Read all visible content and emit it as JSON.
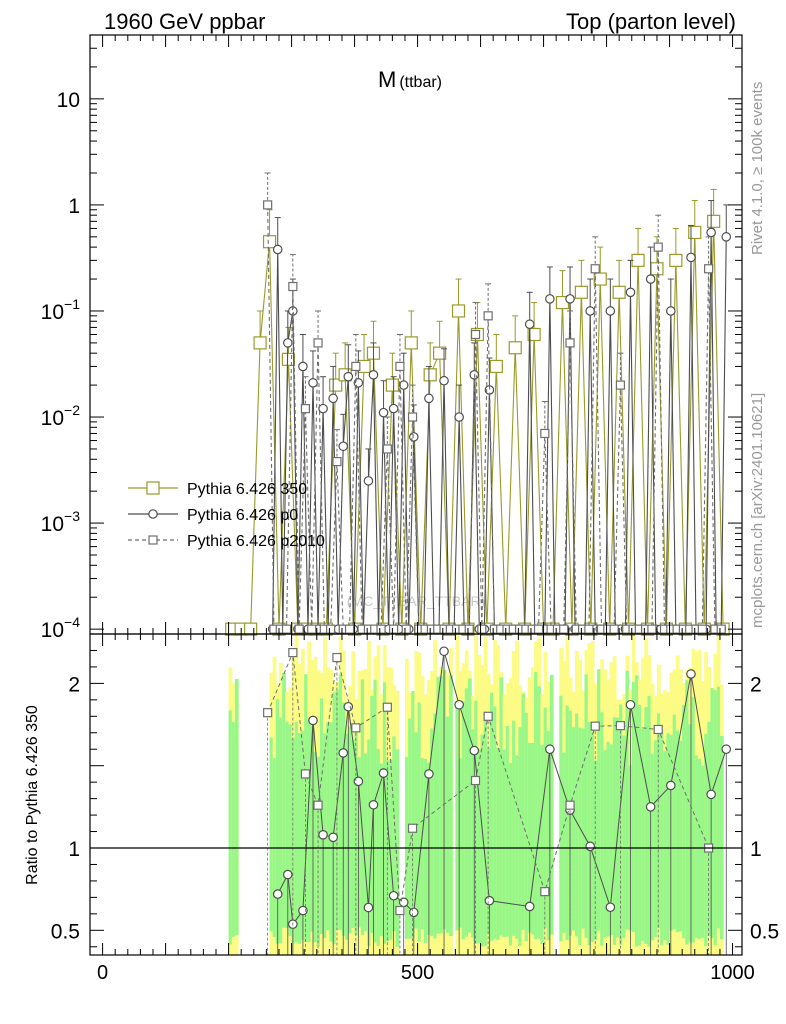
{
  "header": {
    "left": "1960 GeV ppbar",
    "right": "Top (parton level)"
  },
  "side_labels": {
    "rivet": "Rivet 4.1.0, ≥ 100k events",
    "mcplots": "mcplots.cern.ch [arXiv:2401.10621]"
  },
  "watermark": "(MC_TTBAR_TTBAR)",
  "chart_data": {
    "type": "line",
    "title": "M",
    "title_sub": "(ttbar)",
    "x_range": [
      -20,
      1015
    ],
    "y_scale": "log",
    "y_range": [
      9e-05,
      40
    ],
    "x_ticks": [
      {
        "value": 0,
        "label": "0"
      },
      {
        "value": 500,
        "label": "500"
      },
      {
        "value": 1000,
        "label": "1000"
      }
    ],
    "y_ticks": [
      {
        "value": 0.0001,
        "base": "10",
        "exp": "−4"
      },
      {
        "value": 0.001,
        "base": "10",
        "exp": "−3"
      },
      {
        "value": 0.01,
        "base": "10",
        "exp": "−2"
      },
      {
        "value": 0.1,
        "base": "10",
        "exp": "−1"
      },
      {
        "value": 1,
        "base": "1",
        "exp": ""
      },
      {
        "value": 10,
        "base": "10",
        "exp": ""
      }
    ],
    "ratio": {
      "ylabel": "Ratio to Pythia 6.426 350",
      "y_range": [
        0.35,
        2.3
      ],
      "ticks": [
        {
          "value": 0.5,
          "label": "0.5"
        },
        {
          "value": 1,
          "label": "1"
        },
        {
          "value": 2,
          "label": "2"
        }
      ],
      "band_x_range": [
        200,
        985
      ]
    },
    "series": [
      {
        "name": "Pythia 6.426 350",
        "color": "#9a9a28",
        "marker": "square-open",
        "line": "solid",
        "x": [
          205,
          220,
          235,
          250,
          265,
          280,
          295,
          310,
          325,
          340,
          355,
          370,
          385,
          400,
          415,
          430,
          445,
          460,
          475,
          490,
          505,
          520,
          535,
          550,
          565,
          580,
          595,
          610,
          625,
          640,
          655,
          670,
          685,
          700,
          715,
          730,
          745,
          760,
          775,
          790,
          805,
          820,
          835,
          850,
          865,
          880,
          895,
          910,
          925,
          940,
          955,
          970,
          985
        ],
        "values": [
          0.0001,
          0.0001,
          0.0001,
          0.05,
          0.45,
          0.0001,
          0.035,
          0.0001,
          0.0001,
          0.0001,
          0.0001,
          0.02,
          0.025,
          0.0001,
          0.03,
          0.04,
          0.0001,
          0.02,
          0.0001,
          0.05,
          0.0001,
          0.025,
          0.04,
          0.0001,
          0.1,
          0.0001,
          0.06,
          0.0001,
          0.03,
          0.0001,
          0.045,
          0.0001,
          0.06,
          0.0001,
          0.0001,
          0.12,
          0.0001,
          0.15,
          0.0001,
          0.2,
          0.0001,
          0.15,
          0.0001,
          0.3,
          0.0001,
          0.25,
          0.0001,
          0.3,
          0.0001,
          0.55,
          0.0001,
          0.7,
          0.0001
        ]
      },
      {
        "name": "Pythia 6.426 p0",
        "color": "#4d4d4d",
        "marker": "circle-open",
        "line": "solid",
        "x": [
          270,
          278,
          286,
          294,
          302,
          310,
          318,
          326,
          334,
          342,
          350,
          358,
          366,
          374,
          382,
          390,
          398,
          406,
          414,
          422,
          430,
          438,
          446,
          454,
          462,
          470,
          478,
          486,
          494,
          502,
          510,
          518,
          526,
          534,
          542,
          550,
          558,
          566,
          574,
          582,
          590,
          598,
          606,
          614,
          622,
          630,
          638,
          646,
          654,
          662,
          670,
          678,
          686,
          694,
          702,
          710,
          718,
          726,
          734,
          742,
          750,
          758,
          766,
          774,
          782,
          790,
          798,
          806,
          814,
          822,
          830,
          838,
          846,
          854,
          862,
          870,
          878,
          886,
          894,
          902,
          910,
          918,
          926,
          934,
          942,
          950,
          958,
          966,
          974,
          982,
          990
        ],
        "values": [
          0.0001,
          0.38,
          0.0001,
          0.05,
          0.1,
          0.0001,
          0.03,
          0.0001,
          0.021,
          0.0001,
          0.012,
          0.0001,
          0.015,
          0.0001,
          0.0053,
          0.024,
          0.0001,
          0.021,
          0.0001,
          0.0025,
          0.025,
          0.0001,
          0.011,
          0.0001,
          0.012,
          0.0001,
          0.02,
          0.0001,
          0.0065,
          0.0001,
          0.0001,
          0.015,
          0.0001,
          0.0001,
          0.022,
          0.0001,
          0.0001,
          0.01,
          0.0001,
          0.0001,
          0.025,
          0.0001,
          0.0001,
          0.018,
          0.0001,
          0.0001,
          0.0001,
          0.0001,
          0.0001,
          0.0001,
          0.0001,
          0.075,
          0.0001,
          0.0001,
          0.0001,
          0.13,
          0.0001,
          0.0001,
          0.0001,
          0.13,
          0.0001,
          0.0001,
          0.0001,
          0.1,
          0.0001,
          0.0001,
          0.0001,
          0.1,
          0.0001,
          0.0001,
          0.0001,
          0.15,
          0.0001,
          0.0001,
          0.0001,
          0.2,
          0.0001,
          0.0001,
          0.0001,
          0.1,
          0.0001,
          0.0001,
          0.0001,
          0.32,
          0.0001,
          0.0001,
          0.0001,
          0.55,
          0.0001,
          0.0001,
          0.5
        ]
      },
      {
        "name": "Pythia 6.426 p2010",
        "color": "#6e6e6e",
        "marker": "square-open",
        "line": "dashed",
        "x": [
          262,
          272,
          282,
          292,
          302,
          312,
          322,
          332,
          342,
          352,
          362,
          372,
          382,
          392,
          402,
          412,
          422,
          432,
          442,
          452,
          462,
          472,
          482,
          492,
          502,
          512,
          522,
          532,
          542,
          552,
          562,
          572,
          582,
          592,
          602,
          612,
          622,
          632,
          642,
          652,
          662,
          672,
          682,
          692,
          702,
          712,
          722,
          732,
          742,
          752,
          762,
          772,
          782,
          792,
          802,
          812,
          822,
          832,
          842,
          852,
          862,
          872,
          882,
          892,
          902,
          912,
          922,
          932,
          942,
          952,
          962,
          972,
          982
        ],
        "values": [
          1.0,
          0.0001,
          0.0001,
          0.0001,
          0.17,
          0.0001,
          0.012,
          0.0001,
          0.05,
          0.0001,
          0.0001,
          0.0038,
          0.0001,
          0.0001,
          0.03,
          0.0001,
          0.0001,
          0.0001,
          0.0001,
          0.005,
          0.0001,
          0.03,
          0.0001,
          0.01,
          0.0001,
          0.0001,
          0.0001,
          0.0001,
          0.0001,
          0.0001,
          0.0001,
          0.0001,
          0.0001,
          0.06,
          0.0001,
          0.09,
          0.0001,
          0.0001,
          0.0001,
          0.0001,
          0.0001,
          0.0001,
          0.0001,
          0.0001,
          0.007,
          0.0001,
          0.0001,
          0.0001,
          0.05,
          0.0001,
          0.0001,
          0.0001,
          0.25,
          0.0001,
          0.0001,
          0.0001,
          0.02,
          0.0001,
          0.0001,
          0.0001,
          0.0001,
          0.0001,
          0.4,
          0.0001,
          0.0001,
          0.0001,
          0.0001,
          0.0001,
          0.0001,
          0.0001,
          0.25,
          0.0001,
          0.0001
        ]
      }
    ]
  }
}
